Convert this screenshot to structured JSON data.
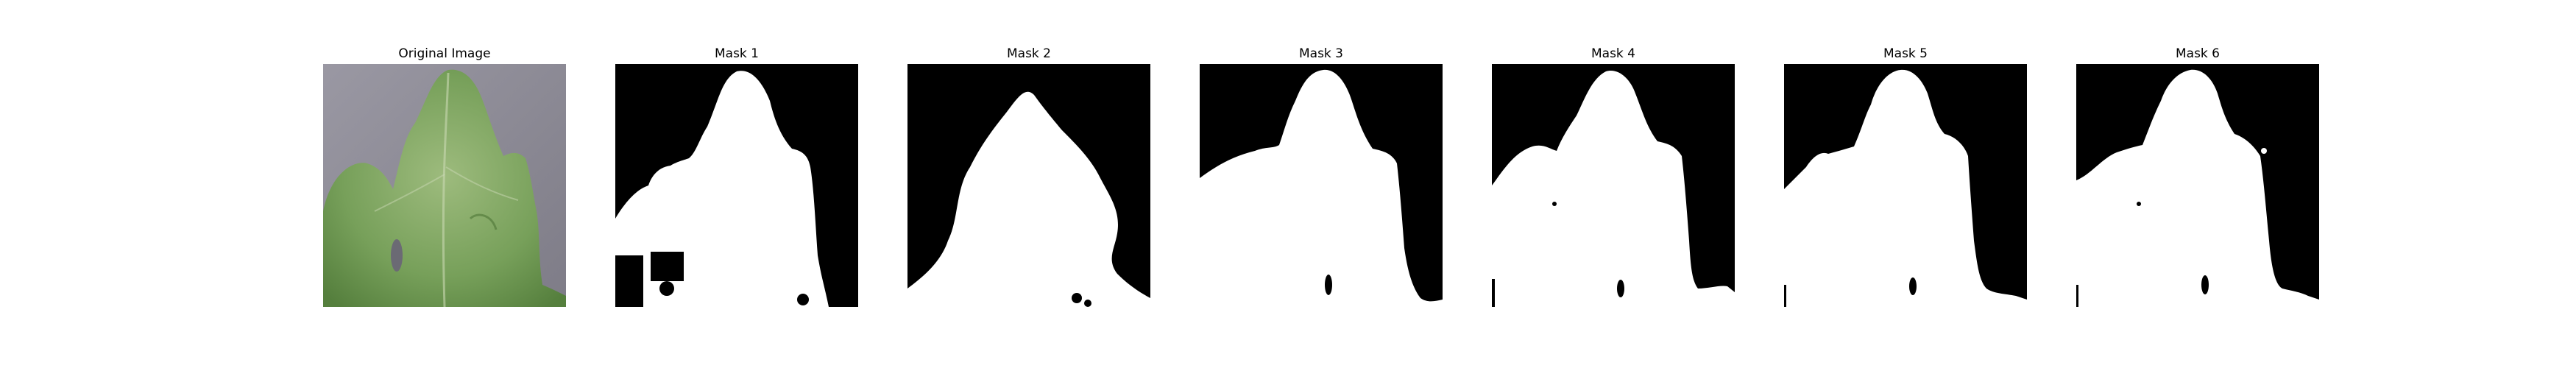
{
  "panels": [
    {
      "title": "Original Image"
    },
    {
      "title": "Mask 1"
    },
    {
      "title": "Mask 2"
    },
    {
      "title": "Mask 3"
    },
    {
      "title": "Mask 4"
    },
    {
      "title": "Mask 5"
    },
    {
      "title": "Mask 6"
    }
  ],
  "colors": {
    "background": "#ffffff",
    "mask_background": "#000000",
    "mask_foreground": "#ffffff",
    "leaf_green": "#6f9a52",
    "asphalt_gray": "#8e8c97"
  }
}
